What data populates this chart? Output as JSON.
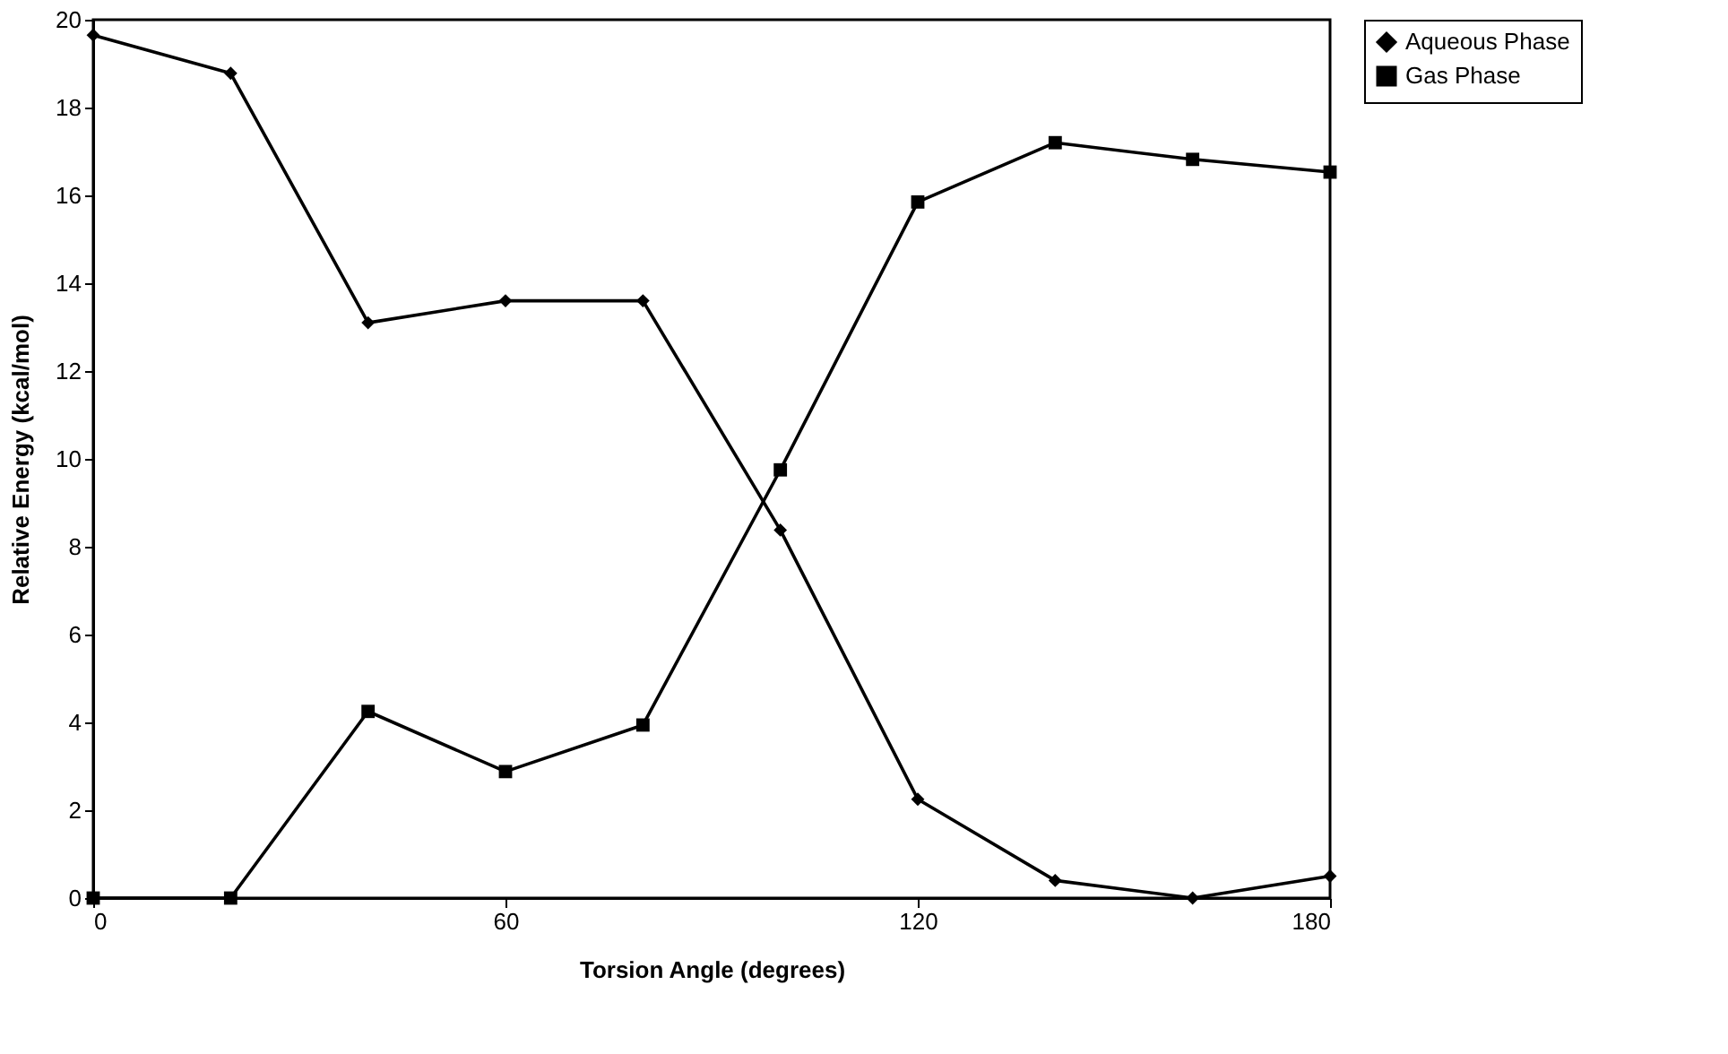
{
  "chart_data": {
    "type": "line",
    "xlabel": "Torsion Angle (degrees)",
    "ylabel": "Relative Energy (kcal/mol)",
    "x": [
      0,
      20,
      40,
      60,
      80,
      100,
      120,
      140,
      160,
      180
    ],
    "xlim": [
      0,
      180
    ],
    "xticks": [
      0,
      60,
      120,
      180
    ],
    "ylim": [
      0,
      20
    ],
    "yticks": [
      0,
      2,
      4,
      6,
      8,
      10,
      12,
      14,
      16,
      18,
      20
    ],
    "grid": false,
    "legend": "right",
    "line_style": "solid",
    "series": [
      {
        "name": "Aqueous Phase",
        "color": "#000000",
        "marker": "diamond",
        "values": [
          19.65,
          18.78,
          13.1,
          13.6,
          13.6,
          8.38,
          2.25,
          0.4,
          0.0,
          0.5
        ]
      },
      {
        "name": "Gas Phase",
        "color": "#000000",
        "marker": "square",
        "values": [
          0.0,
          0.0,
          4.25,
          2.88,
          3.94,
          9.75,
          15.85,
          17.2,
          16.82,
          16.53
        ]
      }
    ]
  }
}
